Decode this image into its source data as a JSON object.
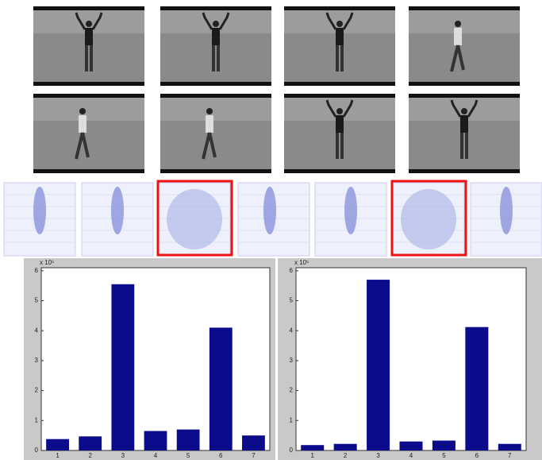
{
  "chart_data": [
    {
      "type": "bar",
      "y_multiplier": "x 10⁵",
      "categories": [
        "1",
        "2",
        "3",
        "4",
        "5",
        "6",
        "7"
      ],
      "values": [
        0.38,
        0.47,
        5.55,
        0.65,
        0.7,
        4.1,
        0.5
      ],
      "color": "#0b0b8c",
      "ylim": [
        0,
        6.1
      ],
      "yticks": [
        0,
        1,
        2,
        3,
        4,
        5,
        6
      ],
      "grid": false
    },
    {
      "type": "bar",
      "y_multiplier": "x 10⁵",
      "categories": [
        "1",
        "2",
        "3",
        "4",
        "5",
        "6",
        "7"
      ],
      "values": [
        0.18,
        0.22,
        5.7,
        0.3,
        0.33,
        4.12,
        0.22
      ],
      "color": "#0b0b8c",
      "ylim": [
        0,
        6.1
      ],
      "yticks": [
        0,
        1,
        2,
        3,
        4,
        5,
        6
      ],
      "grid": false
    }
  ]
}
